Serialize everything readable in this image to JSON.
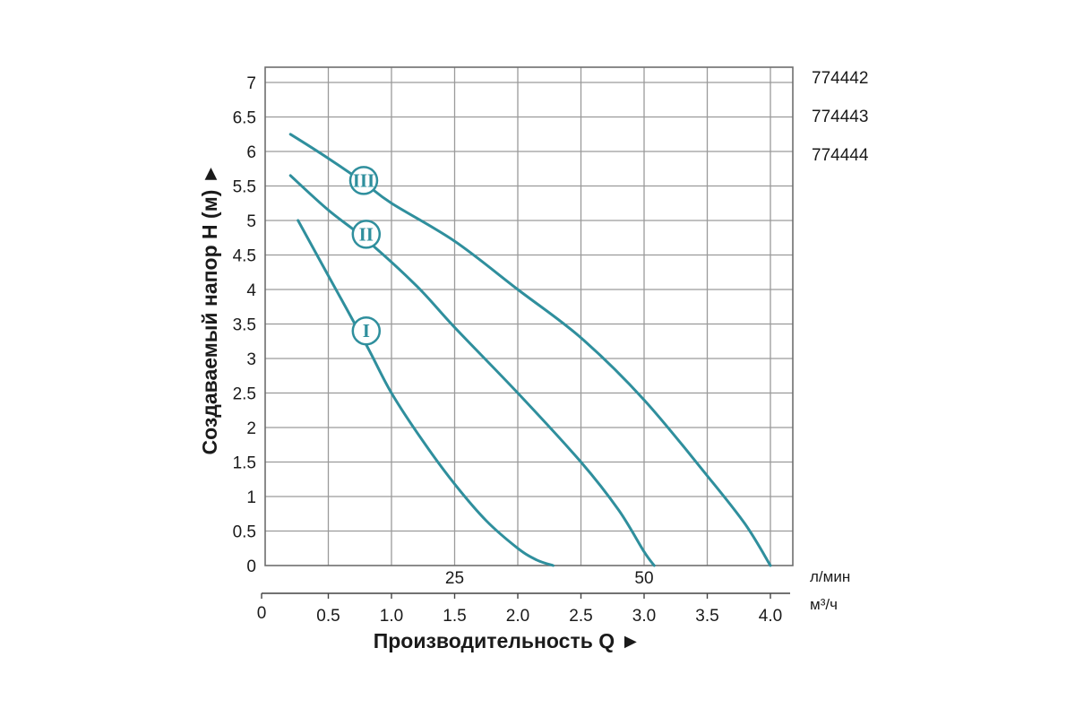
{
  "models": [
    "774442",
    "774443",
    "774444"
  ],
  "units": {
    "flow_lmin": "л/мин",
    "flow_m3h": "м³/ч"
  },
  "colors": {
    "curve": "#2f8f9d",
    "grid": "#9a9a9a",
    "frame": "#6e6e6e",
    "text": "#1a1a1a"
  },
  "chart_data": {
    "type": "line",
    "title": "",
    "xlabel": "Производительность Q ►",
    "ylabel": "Создаваемый напор H (м) ►",
    "xlim": [
      0,
      4.15
    ],
    "ylim": [
      0,
      7.3
    ],
    "grid": true,
    "x_ticks": [
      0.5,
      1.0,
      1.5,
      2.0,
      2.5,
      3.0,
      3.5,
      4.0
    ],
    "x_tick_labels": [
      "0.5",
      "1.0",
      "1.5",
      "2.0",
      "2.5",
      "3.0",
      "3.5",
      "4.0"
    ],
    "x_origin_label": "0",
    "y_ticks": [
      0,
      0.5,
      1,
      1.5,
      2,
      2.5,
      3,
      3.5,
      4,
      4.5,
      5,
      5.5,
      6,
      6.5,
      7
    ],
    "y_tick_labels": [
      "0",
      "0.5",
      "1",
      "1.5",
      "2",
      "2.5",
      "3",
      "3.5",
      "4",
      "4.5",
      "5",
      "5.5",
      "6",
      "6.5",
      "7"
    ],
    "secondary_x_ticks": [
      {
        "at_m3h": 1.5,
        "label": "25"
      },
      {
        "at_m3h": 3.0,
        "label": "50"
      }
    ],
    "series": [
      {
        "label": "I",
        "marker_at": [
          0.8,
          3.4
        ],
        "points": [
          [
            0.26,
            5.0
          ],
          [
            0.5,
            4.2
          ],
          [
            0.8,
            3.2
          ],
          [
            1.0,
            2.5
          ],
          [
            1.25,
            1.8
          ],
          [
            1.5,
            1.18
          ],
          [
            1.75,
            0.65
          ],
          [
            2.0,
            0.25
          ],
          [
            2.15,
            0.08
          ],
          [
            2.28,
            0.0
          ]
        ]
      },
      {
        "label": "II",
        "marker_at": [
          0.8,
          4.8
        ],
        "points": [
          [
            0.2,
            5.65
          ],
          [
            0.5,
            5.15
          ],
          [
            0.8,
            4.72
          ],
          [
            1.2,
            4.05
          ],
          [
            1.5,
            3.45
          ],
          [
            2.0,
            2.5
          ],
          [
            2.5,
            1.5
          ],
          [
            2.8,
            0.8
          ],
          [
            3.0,
            0.2
          ],
          [
            3.08,
            0.0
          ]
        ]
      },
      {
        "label": "III",
        "marker_at": [
          0.78,
          5.58
        ],
        "points": [
          [
            0.2,
            6.25
          ],
          [
            0.5,
            5.9
          ],
          [
            0.78,
            5.55
          ],
          [
            1.0,
            5.25
          ],
          [
            1.5,
            4.7
          ],
          [
            2.0,
            4.0
          ],
          [
            2.5,
            3.3
          ],
          [
            3.0,
            2.4
          ],
          [
            3.5,
            1.3
          ],
          [
            3.8,
            0.6
          ],
          [
            4.0,
            0.0
          ]
        ]
      }
    ]
  }
}
